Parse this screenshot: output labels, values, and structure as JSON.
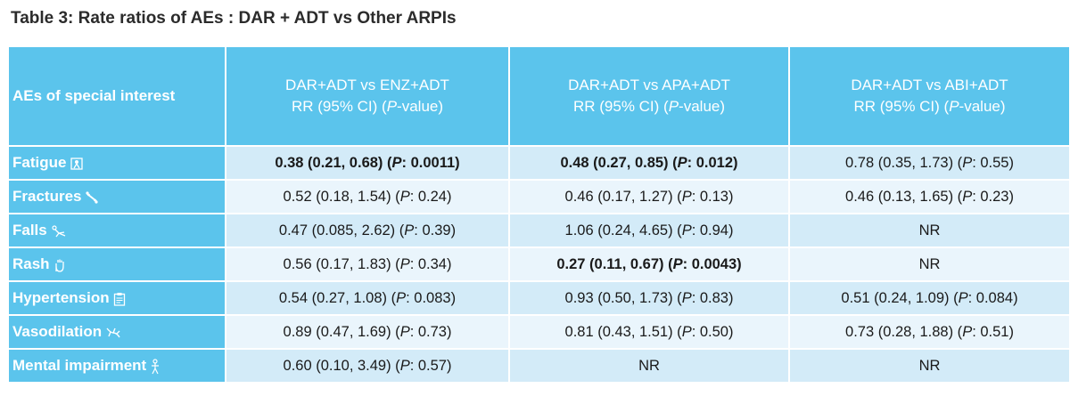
{
  "title": "Table 3: Rate ratios of AEs : DAR + ADT vs Other ARPIs",
  "header": {
    "first": "AEs of special interest",
    "columns": [
      {
        "line1": "DAR+ADT vs ENZ+ADT",
        "rr": "RR (95% CI) (",
        "p": "P",
        "tail": "-value)"
      },
      {
        "line1": "DAR+ADT vs APA+ADT",
        "rr": "RR (95% CI) (",
        "p": "P",
        "tail": "-value)"
      },
      {
        "line1": "DAR+ADT vs ABI+ADT",
        "rr": "RR (95% CI) (",
        "p": "P",
        "tail": "-value)"
      }
    ]
  },
  "rows": [
    {
      "label": "Fatigue",
      "icon": "fatigue-icon",
      "cells": [
        {
          "pre": "0.38 (0.21, 0.68) (",
          "p": "P",
          "post": ": 0.0011)",
          "bold": true
        },
        {
          "pre": "0.48 (0.27, 0.85) (",
          "p": "P",
          "post": ": 0.012)",
          "bold": true
        },
        {
          "pre": "0.78 (0.35, 1.73) (",
          "p": "P",
          "post": ": 0.55)",
          "bold": false
        }
      ]
    },
    {
      "label": "Fractures",
      "icon": "bone-icon",
      "cells": [
        {
          "pre": "0.52 (0.18, 1.54) (",
          "p": "P",
          "post": ": 0.24)",
          "bold": false
        },
        {
          "pre": "0.46 (0.17, 1.27) (",
          "p": "P",
          "post": ": 0.13)",
          "bold": false
        },
        {
          "pre": "0.46 (0.13, 1.65) (",
          "p": "P",
          "post": ": 0.23)",
          "bold": false
        }
      ]
    },
    {
      "label": "Falls",
      "icon": "fall-icon",
      "cells": [
        {
          "pre": "0.47 (0.085, 2.62) (",
          "p": "P",
          "post": ": 0.39)",
          "bold": false
        },
        {
          "pre": "1.06 (0.24, 4.65) (",
          "p": "P",
          "post": ": 0.94)",
          "bold": false
        },
        {
          "pre": "NR",
          "p": "",
          "post": "",
          "bold": false
        }
      ]
    },
    {
      "label": "Rash",
      "icon": "hand-icon",
      "cells": [
        {
          "pre": "0.56 (0.17, 1.83) (",
          "p": "P",
          "post": ": 0.34)",
          "bold": false
        },
        {
          "pre": "0.27 (0.11, 0.67) (",
          "p": "P",
          "post": ": 0.0043)",
          "bold": true
        },
        {
          "pre": "NR",
          "p": "",
          "post": "",
          "bold": false
        }
      ]
    },
    {
      "label": "Hypertension",
      "icon": "clipboard-icon",
      "cells": [
        {
          "pre": "0.54 (0.27, 1.08) (",
          "p": "P",
          "post": ": 0.083)",
          "bold": false
        },
        {
          "pre": "0.93 (0.50, 1.73) (",
          "p": "P",
          "post": ": 0.83)",
          "bold": false
        },
        {
          "pre": "0.51 (0.24, 1.09) (",
          "p": "P",
          "post": ": 0.084)",
          "bold": false
        }
      ]
    },
    {
      "label": "Vasodilation",
      "icon": "vessel-icon",
      "cells": [
        {
          "pre": "0.89 (0.47, 1.69) (",
          "p": "P",
          "post": ": 0.73)",
          "bold": false
        },
        {
          "pre": "0.81 (0.43, 1.51) (",
          "p": "P",
          "post": ": 0.50)",
          "bold": false
        },
        {
          "pre": "0.73 (0.28, 1.88) (",
          "p": "P",
          "post": ": 0.51)",
          "bold": false
        }
      ]
    },
    {
      "label": "Mental impairment",
      "icon": "person-icon",
      "cells": [
        {
          "pre": "0.60 (0.10, 3.49) (",
          "p": "P",
          "post": ": 0.57)",
          "bold": false
        },
        {
          "pre": "NR",
          "p": "",
          "post": "",
          "bold": false
        },
        {
          "pre": "NR",
          "p": "",
          "post": "",
          "bold": false
        }
      ]
    }
  ]
}
